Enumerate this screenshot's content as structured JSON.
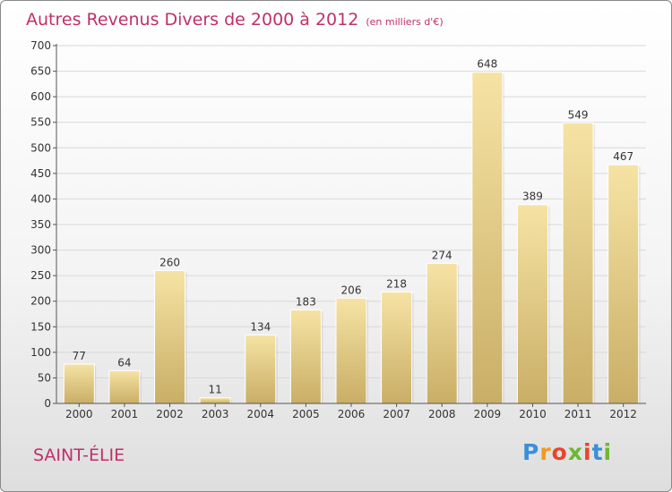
{
  "header": {
    "title": "Autres Revenus Divers de 2000 à 2012",
    "unit": "(en milliers d'€)"
  },
  "place_name": "SAINT-ÉLIE",
  "logo": {
    "text": "Proxiti",
    "letters": [
      "P",
      "r",
      "o",
      "x",
      "i",
      "t",
      "i"
    ],
    "letter_colors": [
      "#3a8fd8",
      "#f29a1e",
      "#e8452b",
      "#6bb832",
      "#e8452b",
      "#3a8fd8",
      "#6bb832"
    ]
  },
  "colors": {
    "title": "#c0306a",
    "bar_light": "#f6e3a4",
    "bar_dark": "#c9ae66",
    "grid": "#d8d8d8",
    "axis": "#555555"
  },
  "chart_data": {
    "type": "bar",
    "title": "Autres Revenus Divers de 2000 à 2012",
    "subtitle": "(en milliers d'€)",
    "xlabel": "",
    "ylabel": "",
    "categories": [
      "2000",
      "2001",
      "2002",
      "2003",
      "2004",
      "2005",
      "2006",
      "2007",
      "2008",
      "2009",
      "2010",
      "2011",
      "2012"
    ],
    "values": [
      77,
      64,
      260,
      11,
      134,
      183,
      206,
      218,
      274,
      648,
      389,
      549,
      467
    ],
    "ylim": [
      0,
      700
    ],
    "yticks": [
      0,
      50,
      100,
      150,
      200,
      250,
      300,
      350,
      400,
      450,
      500,
      550,
      600,
      650,
      700
    ],
    "grid": true,
    "legend": "none",
    "data_labels": true
  }
}
